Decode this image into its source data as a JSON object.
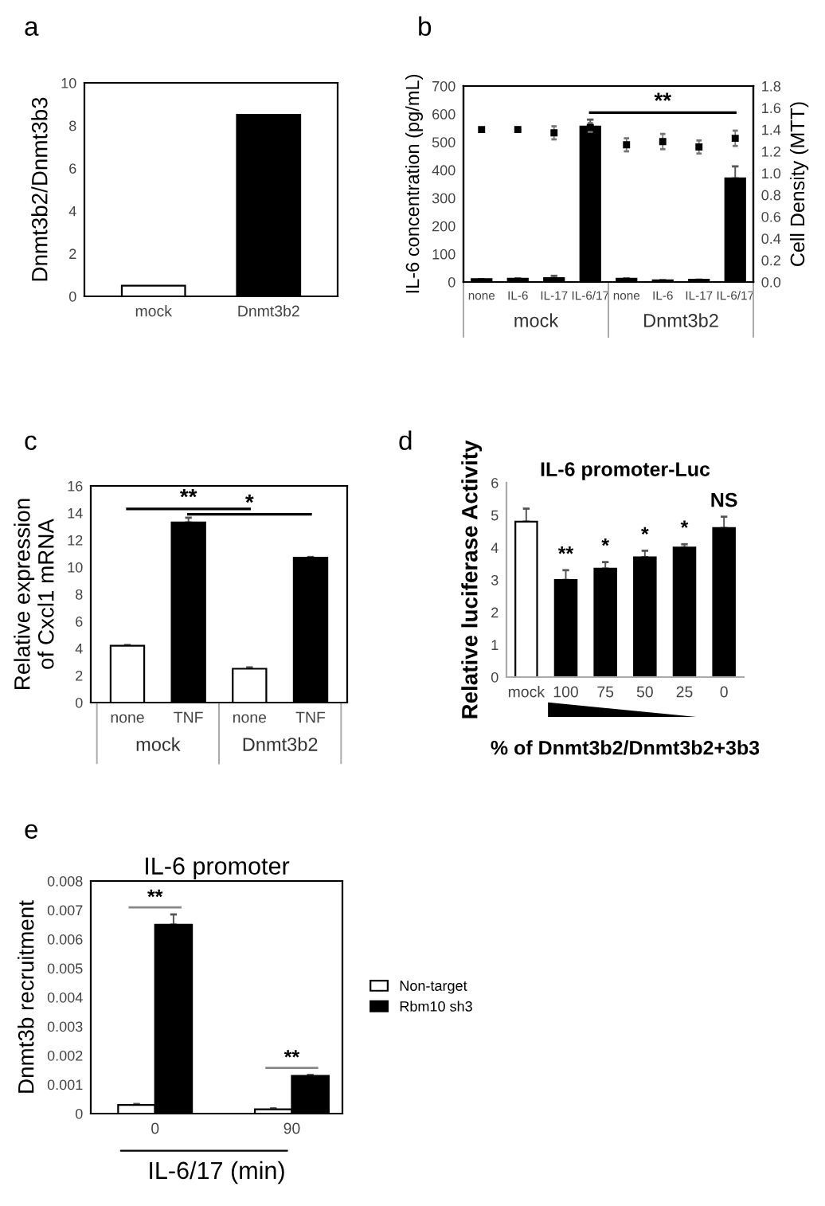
{
  "chart_data": [
    {
      "type": "bar",
      "ylabel": "Dnmt3b2/Dnmt3b3",
      "categories": [
        "mock",
        "Dnmt3b2"
      ],
      "values": [
        0.5,
        8.5
      ],
      "colors": [
        "#ffffff",
        "#000000"
      ],
      "ylim": [
        0,
        10
      ],
      "yticks": [
        0,
        2,
        4,
        6,
        8,
        10
      ],
      "annotations": [
        "a"
      ]
    },
    {
      "type": "bar",
      "ylabel": "IL-6 concentration (pg/mL)",
      "y2label": "Cell Density (MTT)",
      "categories": [
        "none",
        "IL-6",
        "IL-17",
        "IL-6/17",
        "none",
        "IL-6",
        "IL-17",
        "IL-6/17"
      ],
      "series": [
        {
          "type": "bar",
          "color": "#000000",
          "values": [
            10,
            12,
            14,
            555,
            12,
            6,
            8,
            370
          ],
          "errors": [
            null,
            null,
            8,
            25,
            null,
            null,
            null,
            43
          ]
        },
        {
          "type": "scatter",
          "axis": "y2",
          "color": "#000000",
          "values": [
            1.4,
            1.4,
            1.37,
            1.42,
            1.26,
            1.29,
            1.24,
            1.32
          ],
          "errors": [
            0.01,
            0.02,
            0.06,
            0.04,
            0.06,
            0.07,
            0.06,
            0.07
          ]
        }
      ],
      "ylim": [
        0,
        700
      ],
      "yticks": [
        0,
        100,
        200,
        300,
        400,
        500,
        600,
        700
      ],
      "y2lim": [
        0,
        1.8
      ],
      "y2ticks": [
        {
          "value": 0,
          "label": "0.0"
        },
        {
          "value": 0.2,
          "label": "0.2"
        },
        {
          "value": 0.4,
          "label": "0.4"
        },
        {
          "value": 0.6,
          "label": "0.6"
        },
        {
          "value": 0.8,
          "label": "0.8"
        },
        {
          "value": 1.0,
          "label": "1.0"
        },
        {
          "value": 1.2,
          "label": "1.2"
        },
        {
          "value": 1.4,
          "label": "1.4"
        },
        {
          "value": 1.6,
          "label": "1.6"
        },
        {
          "value": 1.8,
          "label": "1.8"
        }
      ],
      "marker": "square",
      "annotations": [
        "b",
        "**",
        "mock",
        "Dnmt3b2"
      ]
    },
    {
      "type": "bar",
      "ylabel": "Relative expression\nof Cxcl1 mRNA",
      "categories": [
        "none",
        "TNF",
        "none",
        "TNF"
      ],
      "values": [
        4.2,
        13.3,
        2.5,
        10.7
      ],
      "colors": [
        "#ffffff",
        "#000000",
        "#ffffff",
        "#000000"
      ],
      "errors": [
        0.05,
        0.35,
        0.1,
        0.05
      ],
      "ylim": [
        0,
        16
      ],
      "yticks": [
        0,
        2,
        4,
        6,
        8,
        10,
        12,
        14,
        16
      ],
      "annotations": [
        "c",
        "**",
        "*",
        "mock",
        "Dnmt3b2"
      ]
    },
    {
      "type": "bar",
      "title": "IL-6 promoter-Luc",
      "ylabel": "Relative luciferase Activity",
      "xlabel": "% of Dnmt3b2/Dnmt3b2+3b3",
      "categories": [
        "mock",
        "100",
        "75",
        "50",
        "25",
        "0"
      ],
      "values": [
        4.8,
        3.0,
        3.35,
        3.7,
        4.0,
        4.6
      ],
      "colors": [
        "#ffffff",
        "#000000",
        "#000000",
        "#000000",
        "#000000",
        "#000000"
      ],
      "errors": [
        0.4,
        0.3,
        0.2,
        0.2,
        0.1,
        0.35
      ],
      "ylim": [
        0,
        6
      ],
      "yticks": [
        0,
        1,
        2,
        3,
        4,
        5,
        6
      ],
      "annotations": [
        "d",
        "**",
        "*",
        "*",
        "*",
        "NS"
      ]
    },
    {
      "type": "bar",
      "title": "IL-6 promoter",
      "ylabel": "Dnmt3b recruitment",
      "xlabel": "IL-6/17 (min)",
      "categories": [
        "0",
        "90"
      ],
      "series": [
        {
          "name": "Non-target",
          "color": "#ffffff",
          "values": [
            0.0003,
            0.00015
          ],
          "errors": [
            3e-05,
            3e-05
          ]
        },
        {
          "name": "Rbm10 sh3",
          "color": "#000000",
          "values": [
            0.0065,
            0.0013
          ],
          "errors": [
            0.00035,
            3e-05
          ]
        }
      ],
      "ylim": [
        0,
        0.008
      ],
      "yticks": [
        0,
        0.001,
        0.002,
        0.003,
        0.004,
        0.005,
        0.006,
        0.007,
        0.008
      ],
      "legend": "right",
      "annotations": [
        "e",
        "**",
        "**"
      ]
    }
  ]
}
